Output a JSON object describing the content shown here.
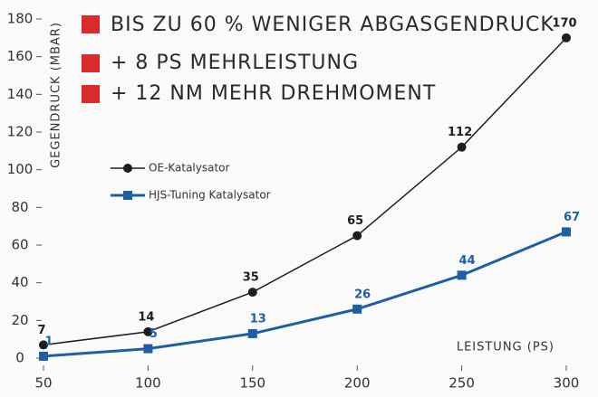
{
  "chart_data": {
    "type": "line",
    "annotations": [
      "BIS ZU 60 % WENIGER ABGASGENDRUCK",
      "+ 8 PS MEHRLEISTUNG",
      "+ 12 NM MEHR DREHMOMENT"
    ],
    "x_label": "LEISTUNG (PS)",
    "y_label": "GEGENDRUCK (MBAR)",
    "x": [
      50,
      100,
      150,
      200,
      250,
      300
    ],
    "series": [
      {
        "name": "OE-Katalysator",
        "color": "#1e1e1e",
        "values": [
          7,
          14,
          35,
          65,
          112,
          170
        ]
      },
      {
        "name": "HJS-Tuning Katalysator",
        "color": "#1d5ea6",
        "values": [
          1,
          5,
          13,
          26,
          44,
          67
        ]
      }
    ],
    "xlim": [
      50,
      300
    ],
    "xticks": [
      50,
      100,
      150,
      200,
      250,
      300
    ],
    "ylim": [
      0,
      180
    ],
    "yticks": [
      0,
      20,
      40,
      60,
      80,
      100,
      120,
      140,
      160,
      180
    ],
    "grid": false
  }
}
